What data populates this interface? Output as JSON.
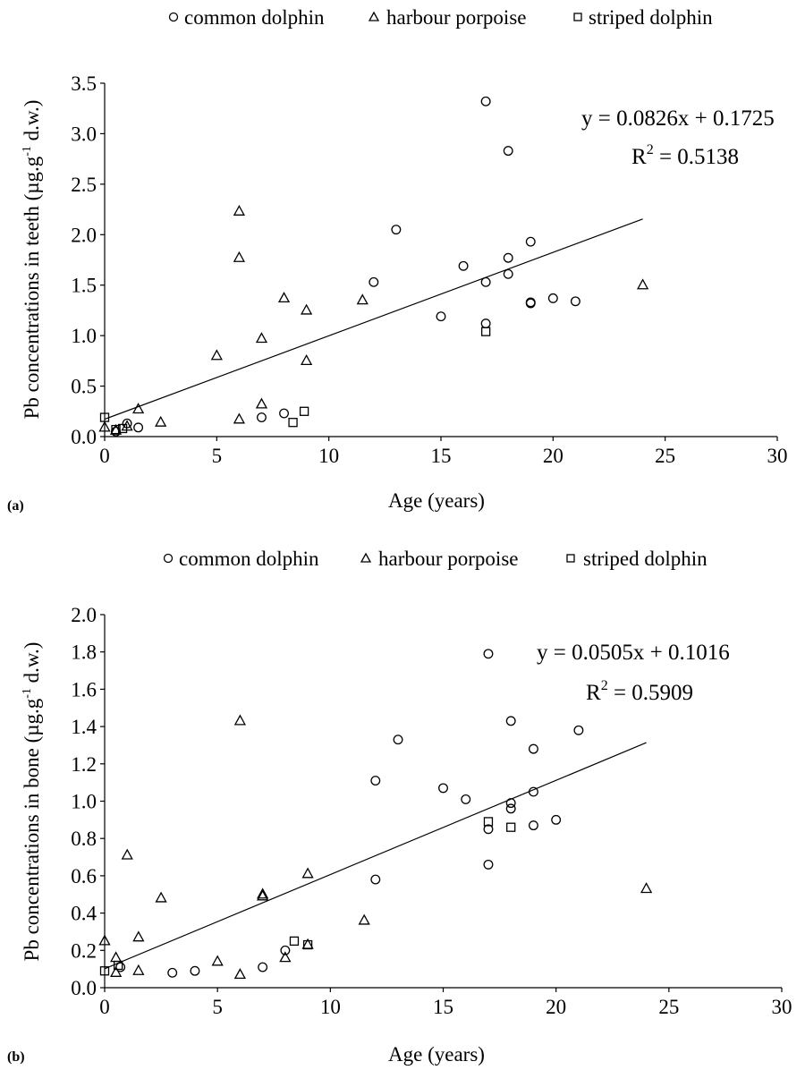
{
  "legend": {
    "common": "common dolphin",
    "harbour": "harbour porpoise",
    "striped": "striped dolphin"
  },
  "chart_data": [
    {
      "type": "scatter",
      "panel_label": "(a)",
      "xlabel": "Age (years)",
      "ylabel": "Pb concentrations in teeth (µg.g",
      "ylabel_sup": "-1",
      "ylabel_end": " d.w.)",
      "xlim": [
        0,
        30
      ],
      "ylim": [
        0,
        3.5
      ],
      "xticks": [
        "0",
        "5",
        "10",
        "15",
        "20",
        "25",
        "30"
      ],
      "yticks": [
        "0.0",
        "0.5",
        "1.0",
        "1.5",
        "2.0",
        "2.5",
        "3.0",
        "3.5"
      ],
      "equation": "y = 0.0826x + 0.1725",
      "r2_label": "R",
      "r2_sup": "2",
      "r2_value": " = 0.5138",
      "trendline": {
        "slope": 0.0826,
        "intercept": 0.1725,
        "x_range": [
          0,
          24
        ]
      },
      "series": [
        {
          "name": "common dolphin",
          "marker": "circle",
          "points": [
            [
              0.5,
              0.05
            ],
            [
              1,
              0.13
            ],
            [
              1.5,
              0.09
            ],
            [
              7,
              0.19
            ],
            [
              8,
              0.23
            ],
            [
              12,
              1.53
            ],
            [
              13,
              2.05
            ],
            [
              15,
              1.19
            ],
            [
              16,
              1.69
            ],
            [
              17,
              3.32
            ],
            [
              17,
              1.53
            ],
            [
              17,
              1.12
            ],
            [
              18,
              2.83
            ],
            [
              18,
              1.77
            ],
            [
              18,
              1.61
            ],
            [
              19,
              1.93
            ],
            [
              19,
              1.33
            ],
            [
              19,
              1.32
            ],
            [
              20,
              1.37
            ],
            [
              21,
              1.34
            ]
          ]
        },
        {
          "name": "harbour porpoise",
          "marker": "triangle",
          "points": [
            [
              0,
              0.09
            ],
            [
              0.5,
              0.06
            ],
            [
              1,
              0.1
            ],
            [
              1.5,
              0.27
            ],
            [
              2.5,
              0.14
            ],
            [
              5,
              0.8
            ],
            [
              6,
              2.23
            ],
            [
              6,
              1.77
            ],
            [
              6,
              0.17
            ],
            [
              7,
              0.97
            ],
            [
              7,
              0.32
            ],
            [
              8,
              1.37
            ],
            [
              9,
              1.25
            ],
            [
              9,
              0.75
            ],
            [
              11.5,
              1.35
            ],
            [
              24,
              1.5
            ]
          ]
        },
        {
          "name": "striped dolphin",
          "marker": "square",
          "points": [
            [
              0,
              0.19
            ],
            [
              0.5,
              0.07
            ],
            [
              0.8,
              0.08
            ],
            [
              8.4,
              0.14
            ],
            [
              8.9,
              0.25
            ],
            [
              17,
              1.04
            ]
          ]
        }
      ]
    },
    {
      "type": "scatter",
      "panel_label": "(b)",
      "xlabel": "Age (years)",
      "ylabel": "Pb concentrations in bone (µg.g",
      "ylabel_sup": "-1",
      "ylabel_end": " d.w.)",
      "xlim": [
        0,
        30
      ],
      "ylim": [
        0,
        2.0
      ],
      "xticks": [
        "0",
        "5",
        "10",
        "15",
        "20",
        "25",
        "30"
      ],
      "yticks": [
        "0.0",
        "0.2",
        "0.4",
        "0.6",
        "0.8",
        "1.0",
        "1.2",
        "1.4",
        "1.6",
        "1.8",
        "2.0"
      ],
      "equation": "y = 0.0505x + 0.1016",
      "r2_label": "R",
      "r2_sup": "2",
      "r2_value": " = 0.5909",
      "trendline": {
        "slope": 0.0505,
        "intercept": 0.1016,
        "x_range": [
          0,
          24
        ]
      },
      "series": [
        {
          "name": "common dolphin",
          "marker": "circle",
          "points": [
            [
              0.7,
              0.11
            ],
            [
              3,
              0.08
            ],
            [
              4,
              0.09
            ],
            [
              7,
              0.11
            ],
            [
              8,
              0.2
            ],
            [
              12,
              1.11
            ],
            [
              12,
              0.58
            ],
            [
              13,
              1.33
            ],
            [
              15,
              1.07
            ],
            [
              16,
              1.01
            ],
            [
              17,
              1.79
            ],
            [
              17,
              0.85
            ],
            [
              17,
              0.66
            ],
            [
              18,
              1.43
            ],
            [
              18,
              0.99
            ],
            [
              18,
              0.96
            ],
            [
              19,
              1.28
            ],
            [
              19,
              1.05
            ],
            [
              19,
              0.87
            ],
            [
              20,
              0.9
            ],
            [
              21,
              1.38
            ]
          ]
        },
        {
          "name": "harbour porpoise",
          "marker": "triangle",
          "points": [
            [
              0,
              0.25
            ],
            [
              0.5,
              0.16
            ],
            [
              0.5,
              0.08
            ],
            [
              1,
              0.71
            ],
            [
              1.5,
              0.27
            ],
            [
              1.5,
              0.09
            ],
            [
              2.5,
              0.48
            ],
            [
              5,
              0.14
            ],
            [
              6,
              1.43
            ],
            [
              6,
              0.07
            ],
            [
              7,
              0.49
            ],
            [
              7,
              0.5
            ],
            [
              8,
              0.16
            ],
            [
              9,
              0.61
            ],
            [
              9,
              0.23
            ],
            [
              11.5,
              0.36
            ],
            [
              24,
              0.53
            ]
          ]
        },
        {
          "name": "striped dolphin",
          "marker": "square",
          "points": [
            [
              0,
              0.09
            ],
            [
              0.6,
              0.12
            ],
            [
              8.4,
              0.25
            ],
            [
              9,
              0.23
            ],
            [
              17,
              0.89
            ],
            [
              18,
              0.86
            ]
          ]
        }
      ]
    }
  ]
}
